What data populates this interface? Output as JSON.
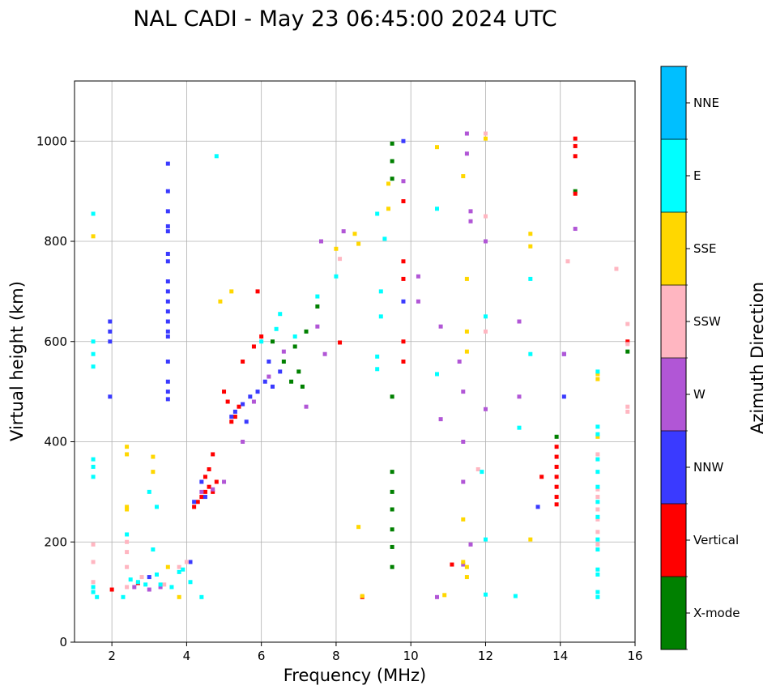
{
  "chart_data": {
    "type": "scatter",
    "title": "NAL CADI - May 23 06:45:00 2024 UTC",
    "xlabel": "Frequency (MHz)",
    "ylabel": "Virtual height (km)",
    "xlim": [
      1,
      16
    ],
    "ylim": [
      0,
      1120
    ],
    "xticks": [
      2,
      4,
      6,
      8,
      10,
      12,
      14,
      16
    ],
    "yticks": [
      0,
      200,
      400,
      600,
      800,
      1000
    ],
    "grid": true,
    "colorbar": {
      "label": "Azimuth Direction",
      "categories": [
        {
          "name": "X-mode",
          "color": "#008000"
        },
        {
          "name": "Vertical",
          "color": "#ff0000"
        },
        {
          "name": "NNW",
          "color": "#3a3aff"
        },
        {
          "name": "W",
          "color": "#b156d6"
        },
        {
          "name": "SSW",
          "color": "#ffb6c1"
        },
        {
          "name": "SSE",
          "color": "#ffd700"
        },
        {
          "name": "E",
          "color": "#00ffff"
        },
        {
          "name": "NNE",
          "color": "#00bfff"
        }
      ]
    },
    "series": [
      {
        "name": "X-mode",
        "points": [
          [
            9.5,
            995
          ],
          [
            9.5,
            960
          ],
          [
            9.5,
            925
          ],
          [
            9.5,
            490
          ],
          [
            9.5,
            340
          ],
          [
            9.5,
            300
          ],
          [
            9.5,
            265
          ],
          [
            9.5,
            225
          ],
          [
            9.5,
            190
          ],
          [
            9.5,
            150
          ],
          [
            13.9,
            410
          ],
          [
            14.4,
            900
          ],
          [
            15.8,
            580
          ],
          [
            7.5,
            670
          ],
          [
            7.2,
            620
          ],
          [
            6.9,
            590
          ],
          [
            7.0,
            540
          ],
          [
            6.8,
            520
          ],
          [
            7.1,
            510
          ],
          [
            6.6,
            560
          ],
          [
            6.3,
            600
          ]
        ]
      },
      {
        "name": "Vertical",
        "points": [
          [
            4.2,
            270
          ],
          [
            4.3,
            280
          ],
          [
            4.4,
            290
          ],
          [
            4.5,
            300
          ],
          [
            4.6,
            310
          ],
          [
            4.7,
            300
          ],
          [
            4.8,
            320
          ],
          [
            4.5,
            330
          ],
          [
            4.6,
            345
          ],
          [
            4.7,
            375
          ],
          [
            5.2,
            440
          ],
          [
            5.3,
            450
          ],
          [
            5.4,
            470
          ],
          [
            5.1,
            480
          ],
          [
            5.0,
            500
          ],
          [
            5.5,
            560
          ],
          [
            5.8,
            590
          ],
          [
            6.0,
            610
          ],
          [
            5.9,
            700
          ],
          [
            9.8,
            760
          ],
          [
            9.8,
            725
          ],
          [
            9.8,
            600
          ],
          [
            9.8,
            560
          ],
          [
            9.8,
            880
          ],
          [
            8.7,
            90
          ],
          [
            14.4,
            1005
          ],
          [
            14.4,
            990
          ],
          [
            14.4,
            970
          ],
          [
            14.4,
            895
          ],
          [
            13.9,
            390
          ],
          [
            13.9,
            370
          ],
          [
            13.9,
            350
          ],
          [
            13.9,
            330
          ],
          [
            13.9,
            310
          ],
          [
            13.9,
            290
          ],
          [
            13.9,
            275
          ],
          [
            15.8,
            600
          ],
          [
            11.1,
            155
          ],
          [
            13.5,
            330
          ],
          [
            8.1,
            598
          ],
          [
            2.0,
            105
          ],
          [
            2.7,
            118
          ]
        ]
      },
      {
        "name": "NNW",
        "points": [
          [
            3.5,
            955
          ],
          [
            3.5,
            900
          ],
          [
            3.5,
            860
          ],
          [
            3.5,
            830
          ],
          [
            3.5,
            820
          ],
          [
            3.5,
            775
          ],
          [
            3.5,
            760
          ],
          [
            3.5,
            720
          ],
          [
            3.5,
            700
          ],
          [
            3.5,
            680
          ],
          [
            3.5,
            660
          ],
          [
            3.5,
            640
          ],
          [
            3.5,
            620
          ],
          [
            3.5,
            610
          ],
          [
            3.5,
            560
          ],
          [
            3.5,
            520
          ],
          [
            3.5,
            500
          ],
          [
            3.5,
            485
          ],
          [
            1.95,
            640
          ],
          [
            1.95,
            620
          ],
          [
            1.95,
            600
          ],
          [
            1.95,
            490
          ],
          [
            5.3,
            460
          ],
          [
            5.5,
            475
          ],
          [
            5.7,
            490
          ],
          [
            5.9,
            500
          ],
          [
            6.1,
            520
          ],
          [
            6.3,
            510
          ],
          [
            6.5,
            540
          ],
          [
            5.2,
            450
          ],
          [
            5.6,
            440
          ],
          [
            6.2,
            560
          ],
          [
            4.4,
            320
          ],
          [
            4.5,
            290
          ],
          [
            4.2,
            280
          ],
          [
            14.1,
            490
          ],
          [
            14.1,
            575
          ],
          [
            13.4,
            270
          ],
          [
            9.8,
            680
          ],
          [
            9.8,
            1000
          ],
          [
            4.1,
            160
          ],
          [
            3.0,
            130
          ]
        ]
      },
      {
        "name": "W",
        "points": [
          [
            4.4,
            300
          ],
          [
            4.7,
            305
          ],
          [
            5.0,
            320
          ],
          [
            5.5,
            400
          ],
          [
            5.8,
            480
          ],
          [
            6.2,
            530
          ],
          [
            6.6,
            580
          ],
          [
            7.2,
            470
          ],
          [
            7.6,
            800
          ],
          [
            8.2,
            820
          ],
          [
            9.8,
            920
          ],
          [
            10.2,
            730
          ],
          [
            10.2,
            680
          ],
          [
            10.8,
            630
          ],
          [
            10.8,
            445
          ],
          [
            11.3,
            560
          ],
          [
            11.4,
            500
          ],
          [
            11.5,
            1015
          ],
          [
            11.5,
            975
          ],
          [
            11.6,
            860
          ],
          [
            11.6,
            840
          ],
          [
            11.4,
            400
          ],
          [
            11.4,
            320
          ],
          [
            11.6,
            195
          ],
          [
            12.0,
            800
          ],
          [
            12.0,
            465
          ],
          [
            12.9,
            640
          ],
          [
            12.9,
            490
          ],
          [
            14.1,
            575
          ],
          [
            14.4,
            825
          ],
          [
            3.0,
            105
          ],
          [
            2.6,
            110
          ],
          [
            3.3,
            110
          ],
          [
            10.7,
            90
          ],
          [
            11.4,
            155
          ],
          [
            7.5,
            630
          ],
          [
            7.7,
            575
          ]
        ]
      },
      {
        "name": "SSW",
        "points": [
          [
            1.5,
            195
          ],
          [
            1.5,
            160
          ],
          [
            1.5,
            120
          ],
          [
            2.4,
            200
          ],
          [
            2.4,
            180
          ],
          [
            2.4,
            150
          ],
          [
            2.4,
            110
          ],
          [
            2.8,
            130
          ],
          [
            3.4,
            115
          ],
          [
            3.8,
            150
          ],
          [
            4.0,
            160
          ],
          [
            8.1,
            765
          ],
          [
            12.0,
            850
          ],
          [
            12.0,
            620
          ],
          [
            11.8,
            345
          ],
          [
            14.2,
            760
          ],
          [
            15.0,
            375
          ],
          [
            15.0,
            305
          ],
          [
            15.0,
            290
          ],
          [
            15.0,
            265
          ],
          [
            15.0,
            245
          ],
          [
            15.0,
            220
          ],
          [
            15.0,
            195
          ],
          [
            15.8,
            635
          ],
          [
            15.8,
            595
          ],
          [
            15.8,
            470
          ],
          [
            15.8,
            460
          ],
          [
            15.5,
            745
          ],
          [
            12.0,
            1015
          ]
        ]
      },
      {
        "name": "SSE",
        "points": [
          [
            1.5,
            810
          ],
          [
            2.4,
            390
          ],
          [
            2.4,
            375
          ],
          [
            2.4,
            270
          ],
          [
            2.4,
            265
          ],
          [
            3.1,
            370
          ],
          [
            3.1,
            340
          ],
          [
            3.5,
            150
          ],
          [
            3.8,
            90
          ],
          [
            4.9,
            680
          ],
          [
            5.2,
            700
          ],
          [
            8.0,
            785
          ],
          [
            8.5,
            815
          ],
          [
            8.6,
            795
          ],
          [
            8.6,
            230
          ],
          [
            8.7,
            92
          ],
          [
            9.4,
            865
          ],
          [
            9.4,
            915
          ],
          [
            10.7,
            988
          ],
          [
            10.9,
            94
          ],
          [
            11.4,
            930
          ],
          [
            11.5,
            725
          ],
          [
            11.5,
            620
          ],
          [
            11.5,
            580
          ],
          [
            11.4,
            245
          ],
          [
            11.4,
            160
          ],
          [
            11.5,
            150
          ],
          [
            11.5,
            130
          ],
          [
            12.0,
            1005
          ],
          [
            13.2,
            815
          ],
          [
            13.2,
            790
          ],
          [
            13.2,
            205
          ],
          [
            15.0,
            535
          ],
          [
            15.0,
            525
          ],
          [
            15.0,
            410
          ]
        ]
      },
      {
        "name": "E",
        "points": [
          [
            1.5,
            855
          ],
          [
            1.5,
            600
          ],
          [
            1.5,
            575
          ],
          [
            1.5,
            550
          ],
          [
            1.5,
            365
          ],
          [
            1.5,
            350
          ],
          [
            1.5,
            330
          ],
          [
            1.5,
            110
          ],
          [
            1.5,
            100
          ],
          [
            1.6,
            90
          ],
          [
            2.3,
            90
          ],
          [
            2.5,
            125
          ],
          [
            2.7,
            120
          ],
          [
            2.9,
            115
          ],
          [
            3.2,
            135
          ],
          [
            3.3,
            115
          ],
          [
            3.6,
            110
          ],
          [
            3.8,
            140
          ],
          [
            3.9,
            145
          ],
          [
            4.1,
            120
          ],
          [
            4.4,
            90
          ],
          [
            3.0,
            300
          ],
          [
            3.2,
            270
          ],
          [
            3.1,
            185
          ],
          [
            2.4,
            215
          ],
          [
            4.8,
            970
          ],
          [
            8.0,
            730
          ],
          [
            9.1,
            855
          ],
          [
            9.2,
            700
          ],
          [
            9.2,
            650
          ],
          [
            9.1,
            570
          ],
          [
            9.1,
            545
          ],
          [
            9.3,
            805
          ],
          [
            10.7,
            865
          ],
          [
            10.7,
            535
          ],
          [
            12.0,
            650
          ],
          [
            12.0,
            205
          ],
          [
            11.9,
            340
          ],
          [
            12.0,
            95
          ],
          [
            13.2,
            725
          ],
          [
            12.9,
            428
          ],
          [
            12.8,
            92
          ],
          [
            13.2,
            575
          ],
          [
            15.0,
            540
          ],
          [
            15.0,
            430
          ],
          [
            15.0,
            415
          ],
          [
            15.0,
            365
          ],
          [
            15.0,
            340
          ],
          [
            15.0,
            310
          ],
          [
            15.0,
            280
          ],
          [
            15.0,
            250
          ],
          [
            15.0,
            205
          ],
          [
            15.0,
            185
          ],
          [
            15.0,
            145
          ],
          [
            15.0,
            135
          ],
          [
            15.0,
            100
          ],
          [
            15.0,
            90
          ],
          [
            7.5,
            690
          ],
          [
            6.5,
            655
          ],
          [
            6.4,
            625
          ],
          [
            6.0,
            600
          ],
          [
            6.9,
            610
          ]
        ]
      },
      {
        "name": "NNE",
        "points": []
      }
    ]
  }
}
